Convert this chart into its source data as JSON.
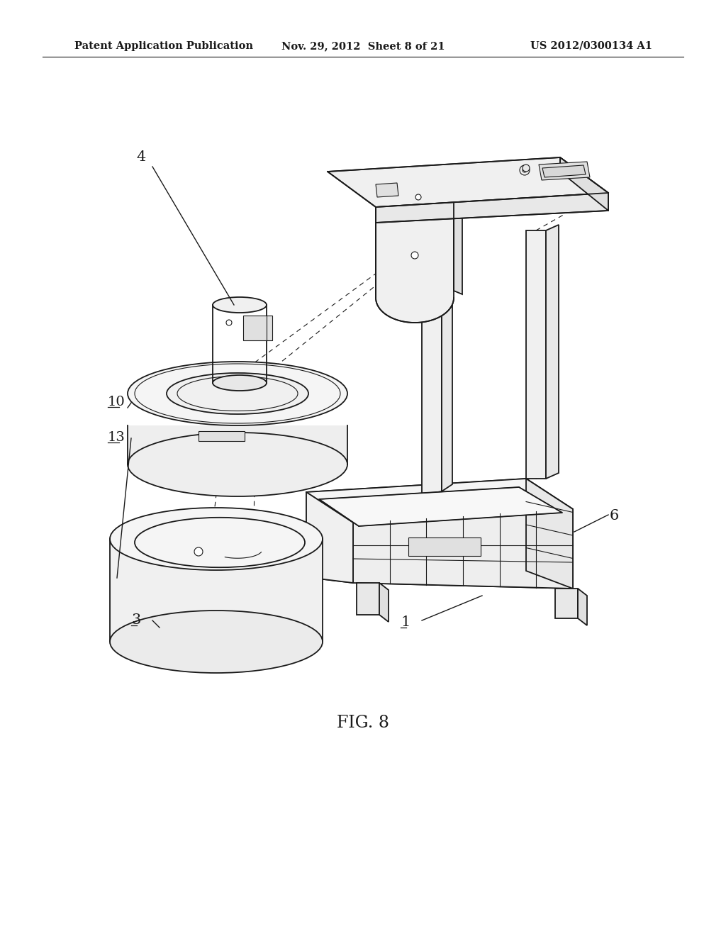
{
  "bg_color": "#ffffff",
  "header_left": "Patent Application Publication",
  "header_mid": "Nov. 29, 2012  Sheet 8 of 21",
  "header_right": "US 2012/0300134 A1",
  "figure_label": "FIG. 8",
  "line_color": "#1a1a1a",
  "lw_main": 1.3,
  "lw_thin": 0.8,
  "lw_dash": 0.8
}
